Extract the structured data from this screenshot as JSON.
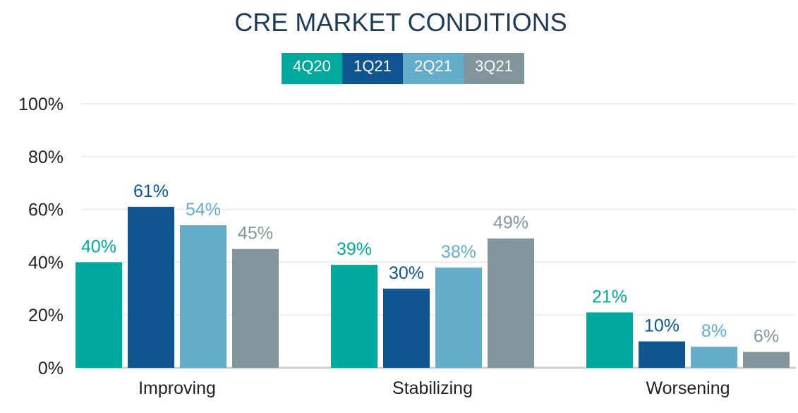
{
  "chart_data": {
    "type": "bar",
    "title": "CRE MARKET CONDITIONS",
    "categories": [
      "Improving",
      "Stabilizing",
      "Worsening"
    ],
    "series": [
      {
        "name": "4Q20",
        "color": "#00a99d",
        "values": [
          40,
          39,
          21
        ],
        "labels": [
          "40%",
          "39%",
          "21%"
        ]
      },
      {
        "name": "1Q21",
        "color": "#0f5590",
        "values": [
          61,
          30,
          10
        ],
        "labels": [
          "61%",
          "30%",
          "10%"
        ]
      },
      {
        "name": "2Q21",
        "color": "#64aecb",
        "values": [
          54,
          38,
          8
        ],
        "labels": [
          "54%",
          "38%",
          "8%"
        ]
      },
      {
        "name": "3Q21",
        "color": "#83959c",
        "values": [
          45,
          49,
          6
        ],
        "labels": [
          "45%",
          "49%",
          "6%"
        ]
      }
    ],
    "yticks": [
      0,
      20,
      40,
      60,
      80,
      100
    ],
    "ytick_labels": [
      "0%",
      "20%",
      "40%",
      "60%",
      "80%",
      "100%"
    ],
    "ylim": [
      0,
      100
    ],
    "legend_position": "top-center",
    "grid": true
  }
}
